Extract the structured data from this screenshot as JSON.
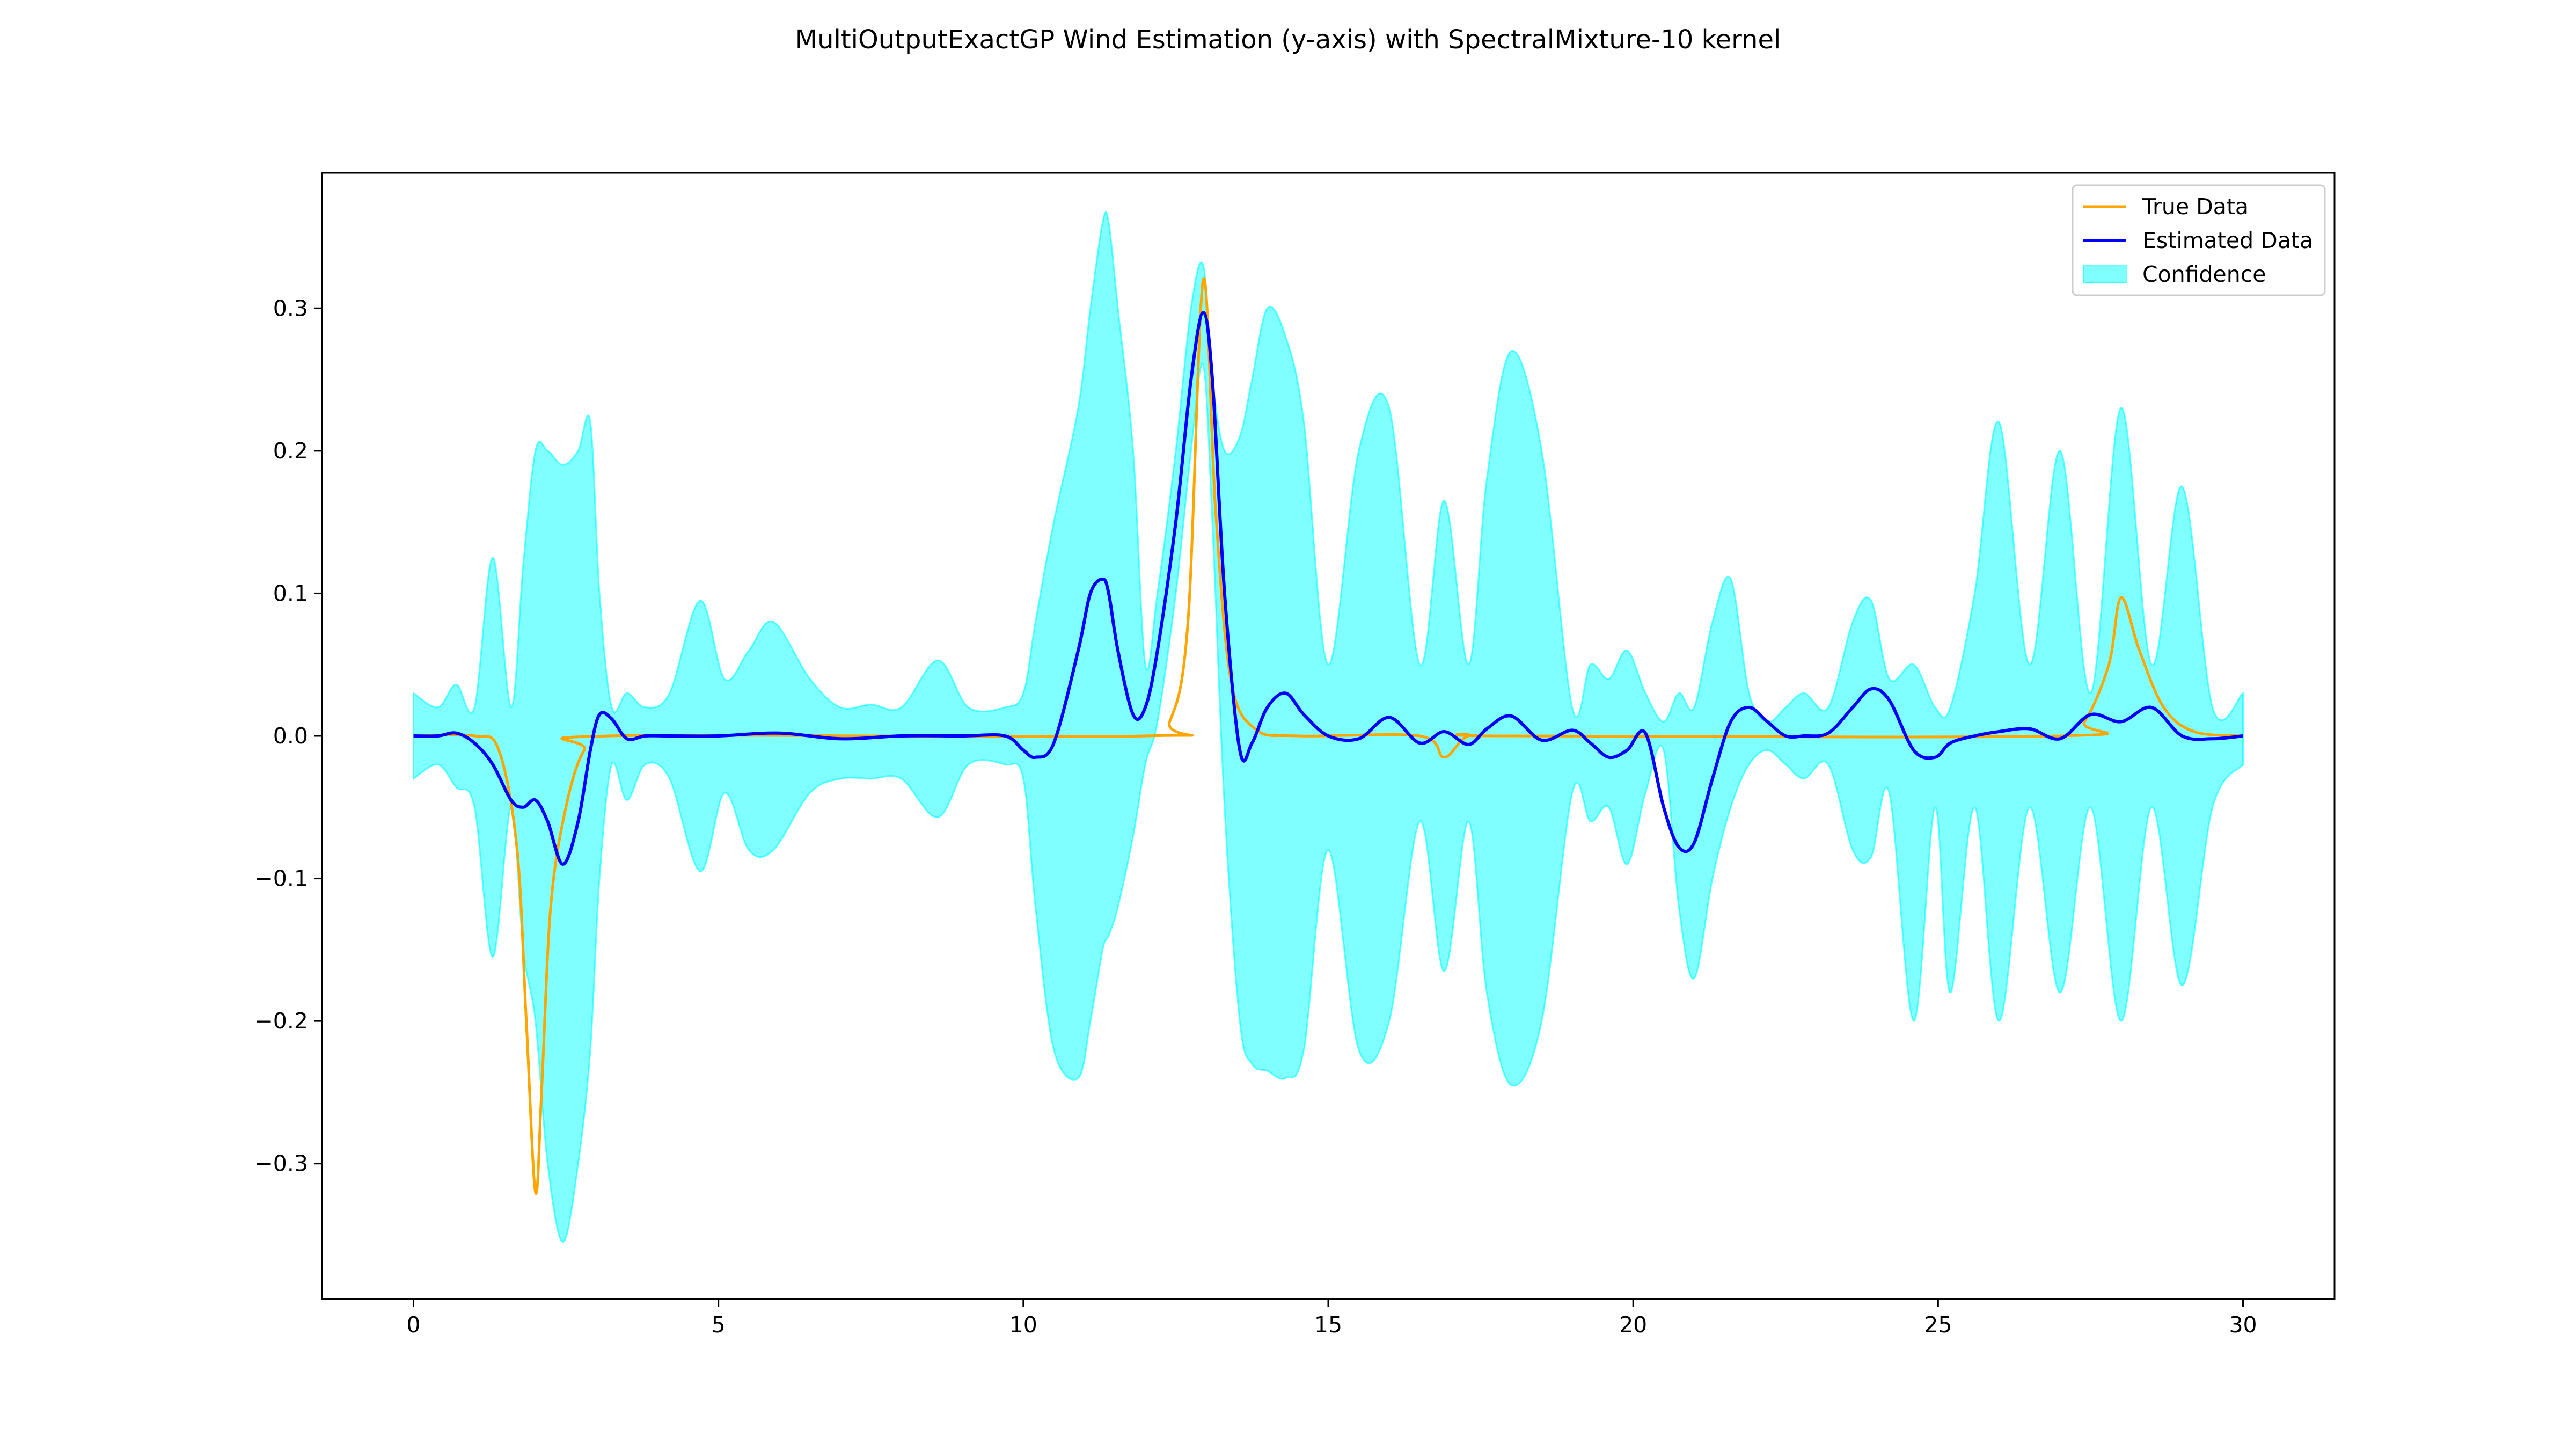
{
  "chart_data": {
    "type": "line",
    "title": "MultiOutputExactGP Wind Estimation (y-axis) with SpectralMixture-10 kernel",
    "xlabel": "",
    "ylabel": "",
    "xlim": [
      -1.5,
      31.5
    ],
    "ylim": [
      -0.395,
      0.395
    ],
    "xticks": [
      0,
      5,
      10,
      15,
      20,
      25,
      30
    ],
    "xtick_labels": [
      "0",
      "5",
      "10",
      "15",
      "20",
      "25",
      "30"
    ],
    "yticks": [
      -0.3,
      -0.2,
      -0.1,
      0.0,
      0.1,
      0.2,
      0.3
    ],
    "ytick_labels": [
      "−0.3",
      "−0.2",
      "−0.1",
      "0.0",
      "0.1",
      "0.2",
      "0.3"
    ],
    "grid": false,
    "legend_position": "top-right",
    "legend": [
      "True Data",
      "Estimated Data",
      "Confidence"
    ],
    "series": [
      {
        "name": "True Data",
        "color": "#ffa500",
        "x": [
          0,
          1.0,
          1.4,
          1.7,
          1.85,
          2.0,
          2.1,
          2.25,
          2.5,
          2.8,
          3.2,
          12.0,
          12.4,
          12.7,
          12.95,
          13.15,
          13.4,
          13.8,
          14.5,
          16.5,
          16.9,
          17.3,
          18,
          27.0,
          27.4,
          27.8,
          28.0,
          28.3,
          28.7,
          29.2,
          30
        ],
        "values": [
          0,
          0,
          -0.01,
          -0.08,
          -0.2,
          -0.32,
          -0.25,
          -0.12,
          -0.05,
          -0.01,
          0,
          0,
          0.01,
          0.08,
          0.32,
          0.16,
          0.04,
          0.005,
          0,
          0,
          -0.015,
          0,
          0,
          0,
          0.01,
          0.05,
          0.097,
          0.06,
          0.02,
          0.003,
          0
        ]
      },
      {
        "name": "Estimated Data",
        "color": "#0000ff",
        "x": [
          0,
          0.4,
          0.7,
          1.0,
          1.3,
          1.6,
          1.8,
          2.0,
          2.2,
          2.45,
          2.7,
          2.9,
          3.05,
          3.25,
          3.5,
          3.8,
          4.2,
          5,
          6,
          7,
          8,
          9,
          9.7,
          10.0,
          10.2,
          10.5,
          10.9,
          11.1,
          11.3,
          11.4,
          11.55,
          11.8,
          12.0,
          12.2,
          12.5,
          12.75,
          12.95,
          13.1,
          13.3,
          13.55,
          13.75,
          14.0,
          14.3,
          14.6,
          15.0,
          15.5,
          16.0,
          16.5,
          16.9,
          17.3,
          17.6,
          18.0,
          18.5,
          19.0,
          19.3,
          19.6,
          19.9,
          20.2,
          20.5,
          20.75,
          21.0,
          21.3,
          21.6,
          21.9,
          22.2,
          22.5,
          22.8,
          23.2,
          23.6,
          23.9,
          24.2,
          24.6,
          24.95,
          25.2,
          25.6,
          26.0,
          26.5,
          27.0,
          27.5,
          28.0,
          28.5,
          29.0,
          29.5,
          30
        ],
        "values": [
          0,
          0,
          0.002,
          -0.005,
          -0.02,
          -0.045,
          -0.05,
          -0.045,
          -0.06,
          -0.09,
          -0.06,
          -0.01,
          0.015,
          0.012,
          -0.002,
          0,
          0,
          0,
          0.002,
          -0.002,
          0,
          0,
          0,
          -0.01,
          -0.015,
          -0.005,
          0.06,
          0.1,
          0.11,
          0.1,
          0.06,
          0.015,
          0.02,
          0.06,
          0.15,
          0.25,
          0.297,
          0.25,
          0.1,
          -0.01,
          -0.005,
          0.02,
          0.03,
          0.015,
          0,
          -0.002,
          0.013,
          -0.005,
          0.003,
          -0.006,
          0.005,
          0.014,
          -0.003,
          0.004,
          -0.005,
          -0.015,
          -0.01,
          0.002,
          -0.05,
          -0.078,
          -0.075,
          -0.03,
          0.01,
          0.02,
          0.01,
          0,
          0,
          0.002,
          0.02,
          0.033,
          0.025,
          -0.01,
          -0.015,
          -0.005,
          0,
          0.003,
          0.005,
          -0.002,
          0.015,
          0.01,
          0.02,
          0,
          -0.002,
          0
        ]
      },
      {
        "name": "Confidence",
        "color": "#00ffff",
        "opacity": 0.5,
        "x": [
          0,
          0.4,
          0.7,
          1.0,
          1.3,
          1.6,
          1.8,
          2.0,
          2.2,
          2.45,
          2.7,
          2.9,
          3.05,
          3.25,
          3.5,
          3.8,
          4.2,
          4.7,
          5.1,
          5.5,
          5.9,
          6.5,
          7.0,
          7.5,
          8.0,
          8.6,
          9.1,
          9.7,
          10.0,
          10.2,
          10.5,
          10.9,
          11.1,
          11.3,
          11.4,
          11.55,
          11.8,
          12.0,
          12.2,
          12.5,
          12.75,
          12.95,
          13.1,
          13.3,
          13.55,
          13.75,
          14.0,
          14.3,
          14.6,
          15.0,
          15.5,
          16.0,
          16.5,
          16.9,
          17.3,
          17.6,
          18.0,
          18.5,
          19.0,
          19.3,
          19.6,
          19.9,
          20.2,
          20.5,
          20.75,
          21.0,
          21.3,
          21.6,
          21.9,
          22.2,
          22.5,
          22.8,
          23.2,
          23.6,
          23.9,
          24.2,
          24.6,
          24.95,
          25.2,
          25.6,
          26.0,
          26.5,
          27.0,
          27.5,
          28.0,
          28.5,
          29.0,
          29.5,
          30
        ],
        "upper": [
          0.03,
          0.02,
          0.036,
          0.02,
          0.125,
          0.02,
          0.12,
          0.2,
          0.2,
          0.19,
          0.2,
          0.22,
          0.1,
          0.02,
          0.03,
          0.02,
          0.03,
          0.095,
          0.04,
          0.06,
          0.08,
          0.04,
          0.02,
          0.022,
          0.02,
          0.053,
          0.02,
          0.02,
          0.03,
          0.08,
          0.15,
          0.23,
          0.3,
          0.36,
          0.36,
          0.3,
          0.2,
          0.05,
          0.1,
          0.2,
          0.3,
          0.33,
          0.25,
          0.2,
          0.21,
          0.25,
          0.3,
          0.28,
          0.22,
          0.05,
          0.2,
          0.23,
          0.05,
          0.165,
          0.05,
          0.18,
          0.27,
          0.2,
          0.02,
          0.05,
          0.04,
          0.06,
          0.03,
          0.01,
          0.03,
          0.02,
          0.08,
          0.11,
          0.03,
          0.01,
          0.02,
          0.03,
          0.02,
          0.08,
          0.095,
          0.04,
          0.05,
          0.02,
          0.02,
          0.1,
          0.22,
          0.05,
          0.2,
          0.03,
          0.23,
          0.05,
          0.175,
          0.02,
          0.03
        ],
        "lower": [
          -0.03,
          -0.02,
          -0.036,
          -0.05,
          -0.155,
          -0.05,
          -0.15,
          -0.2,
          -0.3,
          -0.355,
          -0.3,
          -0.22,
          -0.1,
          -0.02,
          -0.045,
          -0.02,
          -0.03,
          -0.095,
          -0.04,
          -0.08,
          -0.08,
          -0.04,
          -0.03,
          -0.03,
          -0.03,
          -0.057,
          -0.02,
          -0.02,
          -0.03,
          -0.12,
          -0.22,
          -0.24,
          -0.2,
          -0.15,
          -0.14,
          -0.12,
          -0.07,
          -0.02,
          0.01,
          0.1,
          0.2,
          0.26,
          0.15,
          -0.05,
          -0.2,
          -0.23,
          -0.235,
          -0.24,
          -0.22,
          -0.08,
          -0.22,
          -0.2,
          -0.06,
          -0.165,
          -0.06,
          -0.18,
          -0.245,
          -0.2,
          -0.04,
          -0.06,
          -0.05,
          -0.09,
          -0.04,
          -0.01,
          -0.12,
          -0.17,
          -0.1,
          -0.05,
          -0.02,
          -0.01,
          -0.02,
          -0.03,
          -0.02,
          -0.08,
          -0.085,
          -0.04,
          -0.2,
          -0.05,
          -0.18,
          -0.05,
          -0.2,
          -0.05,
          -0.18,
          -0.05,
          -0.2,
          -0.05,
          -0.175,
          -0.05,
          -0.02
        ]
      }
    ]
  }
}
